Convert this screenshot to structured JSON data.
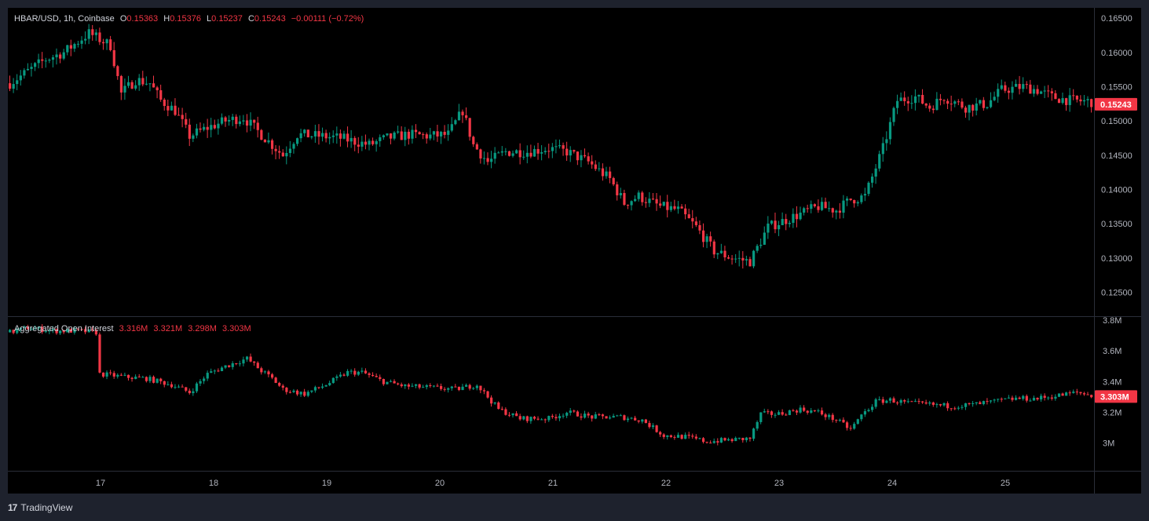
{
  "header": {
    "symbol": "HBAR/USD, 1h, Coinbase",
    "o_label": "O",
    "o_value": "0.15363",
    "h_label": "H",
    "h_value": "0.15376",
    "l_label": "L",
    "l_value": "0.15237",
    "c_label": "C",
    "c_value": "0.15243",
    "change": "−0.00111 (−0.72%)"
  },
  "oi_header": {
    "title": "Aggregated Open Interest",
    "values": [
      "3.316M",
      "3.321M",
      "3.298M",
      "3.303M"
    ]
  },
  "footer": {
    "logo": "17",
    "brand": "TradingView"
  },
  "colors": {
    "up": "#089981",
    "down": "#f23645",
    "background": "#000000",
    "frame": "#1e222d"
  },
  "chart_data": [
    {
      "type": "candlestick",
      "title": "HBAR/USD, 1h, Coinbase",
      "x_ticks": [
        "17",
        "18",
        "19",
        "20",
        "21",
        "22",
        "23",
        "24",
        "25"
      ],
      "y_ticks": [
        "0.16500",
        "0.16000",
        "0.15500",
        "0.15000",
        "0.14500",
        "0.14000",
        "0.13500",
        "0.13000",
        "0.12500"
      ],
      "ylim": [
        0.1215,
        0.1665
      ],
      "last_price_label": "0.15243",
      "path": [
        [
          0,
          0.1555
        ],
        [
          10,
          0.159
        ],
        [
          15,
          0.16
        ],
        [
          22,
          0.1628
        ],
        [
          28,
          0.161
        ],
        [
          31,
          0.154
        ],
        [
          35,
          0.156
        ],
        [
          39,
          0.1555
        ],
        [
          42,
          0.153
        ],
        [
          46,
          0.1515
        ],
        [
          50,
          0.1478
        ],
        [
          55,
          0.149
        ],
        [
          60,
          0.15
        ],
        [
          65,
          0.1505
        ],
        [
          70,
          0.148
        ],
        [
          76,
          0.145
        ],
        [
          80,
          0.148
        ],
        [
          86,
          0.1478
        ],
        [
          92,
          0.1475
        ],
        [
          100,
          0.1465
        ],
        [
          105,
          0.1475
        ],
        [
          111,
          0.148
        ],
        [
          117,
          0.1478
        ],
        [
          122,
          0.148
        ],
        [
          126,
          0.1515
        ],
        [
          129,
          0.1465
        ],
        [
          133,
          0.144
        ],
        [
          138,
          0.1455
        ],
        [
          144,
          0.1455
        ],
        [
          150,
          0.146
        ],
        [
          155,
          0.1455
        ],
        [
          161,
          0.144
        ],
        [
          167,
          0.1415
        ],
        [
          171,
          0.138
        ],
        [
          175,
          0.139
        ],
        [
          181,
          0.1375
        ],
        [
          186,
          0.137
        ],
        [
          191,
          0.1345
        ],
        [
          196,
          0.131
        ],
        [
          201,
          0.13
        ],
        [
          206,
          0.1295
        ],
        [
          211,
          0.1345
        ],
        [
          218,
          0.136
        ],
        [
          225,
          0.1375
        ],
        [
          230,
          0.137
        ],
        [
          234,
          0.1385
        ],
        [
          238,
          0.139
        ],
        [
          243,
          0.146
        ],
        [
          247,
          0.153
        ],
        [
          252,
          0.1535
        ],
        [
          256,
          0.152
        ],
        [
          260,
          0.1535
        ],
        [
          266,
          0.152
        ],
        [
          272,
          0.1525
        ],
        [
          276,
          0.1545
        ],
        [
          282,
          0.155
        ],
        [
          286,
          0.1545
        ],
        [
          290,
          0.1535
        ],
        [
          295,
          0.153
        ],
        [
          301,
          0.1528
        ]
      ]
    },
    {
      "type": "candlestick",
      "title": "Aggregated Open Interest",
      "y_ticks": [
        "3.8M",
        "3.6M",
        "3.4M",
        "3.2M",
        "3M"
      ],
      "y_tick_values": [
        3.8,
        3.6,
        3.4,
        3.2,
        3.0
      ],
      "ylim": [
        2.82,
        3.82
      ],
      "unit": "M",
      "last_value_label": "3.303M",
      "path": [
        [
          0,
          3.72
        ],
        [
          5,
          3.75
        ],
        [
          12,
          3.73
        ],
        [
          19,
          3.73
        ],
        [
          24,
          3.72
        ],
        [
          25,
          3.45
        ],
        [
          32,
          3.43
        ],
        [
          38,
          3.42
        ],
        [
          45,
          3.38
        ],
        [
          50,
          3.33
        ],
        [
          55,
          3.45
        ],
        [
          60,
          3.5
        ],
        [
          66,
          3.55
        ],
        [
          70,
          3.47
        ],
        [
          73,
          3.42
        ],
        [
          76,
          3.35
        ],
        [
          82,
          3.32
        ],
        [
          88,
          3.38
        ],
        [
          94,
          3.46
        ],
        [
          98,
          3.46
        ],
        [
          104,
          3.4
        ],
        [
          110,
          3.37
        ],
        [
          118,
          3.36
        ],
        [
          124,
          3.35
        ],
        [
          130,
          3.38
        ],
        [
          136,
          3.22
        ],
        [
          142,
          3.16
        ],
        [
          150,
          3.16
        ],
        [
          155,
          3.2
        ],
        [
          162,
          3.17
        ],
        [
          170,
          3.17
        ],
        [
          176,
          3.15
        ],
        [
          182,
          3.05
        ],
        [
          188,
          3.04
        ],
        [
          194,
          3.01
        ],
        [
          200,
          3.02
        ],
        [
          206,
          3.03
        ],
        [
          209,
          3.19
        ],
        [
          214,
          3.19
        ],
        [
          220,
          3.22
        ],
        [
          225,
          3.2
        ],
        [
          230,
          3.15
        ],
        [
          234,
          3.09
        ],
        [
          237,
          3.18
        ],
        [
          241,
          3.27
        ],
        [
          245,
          3.28
        ],
        [
          250,
          3.26
        ],
        [
          256,
          3.25
        ],
        [
          262,
          3.24
        ],
        [
          268,
          3.25
        ],
        [
          274,
          3.27
        ],
        [
          280,
          3.29
        ],
        [
          286,
          3.29
        ],
        [
          292,
          3.31
        ],
        [
          297,
          3.33
        ],
        [
          301,
          3.31
        ]
      ]
    }
  ]
}
